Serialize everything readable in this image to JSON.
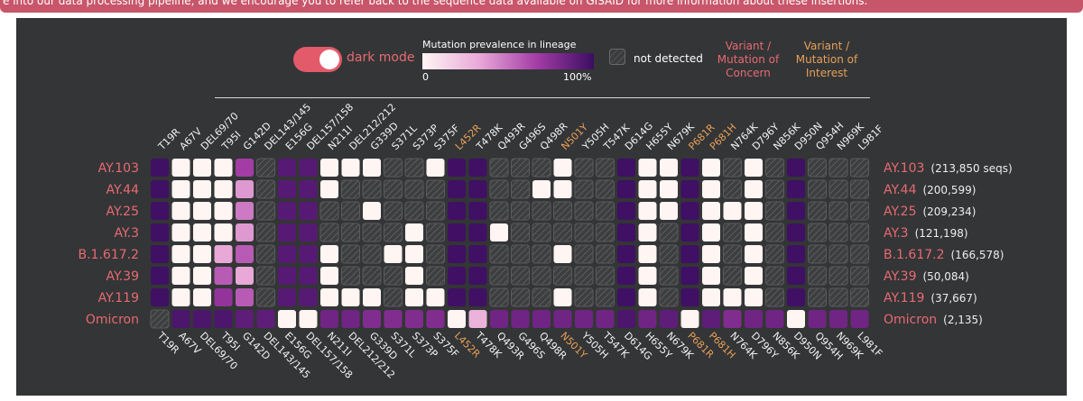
{
  "banner": {
    "text": "e into our data processing pipeline, and we encourage you to refer back to the sequence data available on GISAID for more information about these insertions."
  },
  "controls": {
    "dark_mode_label": "dark mode"
  },
  "legend": {
    "title": "Mutation prevalence in lineage",
    "min_label": "0",
    "max_label": "100%",
    "not_detected_label": "not detected",
    "voc_label": [
      "Variant /",
      "Mutation of",
      "Concern"
    ],
    "voi_label": [
      "Variant /",
      "Mutation of",
      "Interest"
    ],
    "colors": {
      "low": "#fff5f3",
      "high": "#3b0e62",
      "voc": "#e76a73",
      "voi": "#e8a05a",
      "not_detected": "#4a4b4c"
    }
  },
  "chart_data": {
    "type": "heatmap",
    "x": [
      "T19R",
      "A67V",
      "DEL69/70",
      "T95I",
      "G142D",
      "DEL143/145",
      "E156G",
      "DEL157/158",
      "N211I",
      "DEL212/212",
      "G339D",
      "S371L",
      "S373P",
      "S375F",
      "L452R",
      "T478K",
      "Q493R",
      "G496S",
      "Q498R",
      "N501Y",
      "Y505H",
      "T547K",
      "D614G",
      "H655Y",
      "N679K",
      "P681R",
      "P681H",
      "N764K",
      "D796Y",
      "N856K",
      "D950N",
      "Q954H",
      "N969K",
      "L981F"
    ],
    "x_highlight": {
      "L452R": "voi",
      "N501Y": "voi",
      "P681R": "voi",
      "P681H": "voi"
    },
    "y": [
      "AY.103",
      "AY.44",
      "AY.25",
      "AY.3",
      "B.1.617.2",
      "AY.39",
      "AY.119",
      "Omicron"
    ],
    "y_counts": [
      "(213,850 seqs)",
      "(200,599)",
      "(209,234)",
      "(121,198)",
      "(166,578)",
      "(50,084)",
      "(37,667)",
      "(2,135)"
    ],
    "value_scale": [
      0,
      1
    ],
    "values": [
      [
        0.99,
        0.0,
        0.0,
        0.0,
        0.7,
        null,
        0.92,
        0.92,
        0.0,
        0.0,
        0.0,
        null,
        null,
        0.0,
        0.99,
        0.99,
        null,
        null,
        null,
        0.0,
        null,
        null,
        0.99,
        0.0,
        0.0,
        0.99,
        0.0,
        null,
        0.0,
        null,
        0.99,
        null,
        null,
        null
      ],
      [
        0.99,
        0.0,
        0.0,
        0.0,
        0.4,
        null,
        0.92,
        0.92,
        0.0,
        null,
        null,
        null,
        null,
        null,
        0.99,
        0.99,
        null,
        null,
        0.0,
        0.0,
        null,
        null,
        0.99,
        0.0,
        0.0,
        0.99,
        0.0,
        null,
        0.0,
        null,
        0.99,
        null,
        null,
        null
      ],
      [
        0.99,
        0.0,
        0.0,
        0.0,
        0.5,
        null,
        0.92,
        0.92,
        null,
        null,
        0.0,
        null,
        null,
        null,
        0.99,
        0.99,
        null,
        null,
        null,
        null,
        null,
        null,
        0.99,
        0.0,
        0.0,
        0.99,
        0.0,
        0.0,
        0.0,
        null,
        0.99,
        null,
        null,
        null
      ],
      [
        0.99,
        0.0,
        0.0,
        0.0,
        0.4,
        null,
        0.92,
        0.92,
        null,
        null,
        null,
        null,
        0.0,
        null,
        0.99,
        0.99,
        0.0,
        null,
        null,
        null,
        null,
        null,
        0.99,
        0.0,
        null,
        0.99,
        0.0,
        null,
        0.0,
        null,
        0.99,
        null,
        null,
        null
      ],
      [
        0.99,
        0.0,
        0.0,
        0.35,
        0.6,
        null,
        0.92,
        0.92,
        0.0,
        null,
        null,
        0.0,
        0.0,
        null,
        0.99,
        0.99,
        null,
        null,
        null,
        0.0,
        null,
        null,
        0.99,
        0.0,
        null,
        0.99,
        0.0,
        null,
        0.0,
        null,
        0.99,
        null,
        null,
        null
      ],
      [
        0.99,
        0.0,
        0.0,
        0.6,
        0.35,
        null,
        0.92,
        0.92,
        0.0,
        null,
        null,
        null,
        0.0,
        null,
        0.99,
        0.99,
        null,
        null,
        null,
        null,
        null,
        null,
        0.99,
        0.0,
        null,
        0.99,
        0.0,
        null,
        0.0,
        null,
        0.99,
        null,
        null,
        null
      ],
      [
        0.99,
        0.0,
        0.0,
        0.75,
        0.6,
        null,
        0.92,
        0.92,
        0.0,
        0.0,
        0.0,
        null,
        0.0,
        0.0,
        0.99,
        0.99,
        null,
        null,
        null,
        0.0,
        null,
        null,
        0.99,
        0.0,
        null,
        0.99,
        0.0,
        0.0,
        0.0,
        null,
        0.99,
        null,
        null,
        null
      ],
      [
        null,
        0.95,
        0.95,
        0.95,
        0.9,
        0.9,
        0.0,
        0.0,
        0.85,
        0.85,
        0.8,
        0.8,
        0.8,
        0.8,
        0.0,
        0.3,
        0.85,
        0.85,
        0.85,
        0.85,
        0.85,
        0.85,
        0.95,
        0.85,
        0.9,
        0.0,
        0.9,
        0.8,
        0.85,
        0.85,
        0.0,
        0.85,
        0.85,
        0.85
      ]
    ]
  }
}
